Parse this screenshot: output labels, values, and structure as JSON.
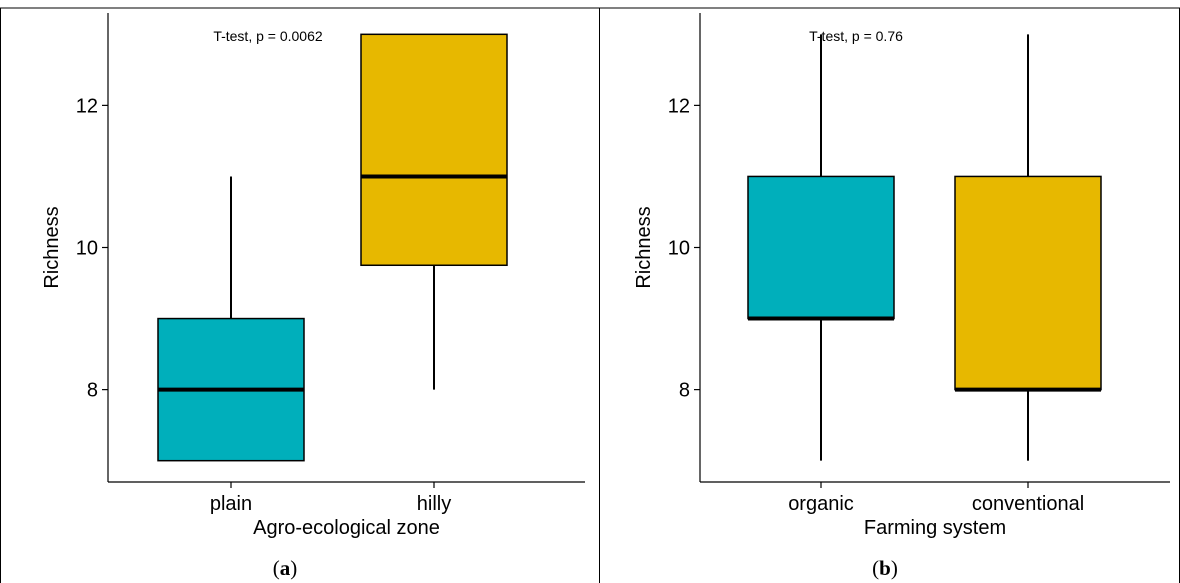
{
  "figure": {
    "panel_labels": [
      {
        "open": "(",
        "letter": "a",
        "close": ")"
      },
      {
        "open": "(",
        "letter": "b",
        "close": ")"
      }
    ]
  },
  "colors": {
    "box_first": "#00AFBB",
    "box_second": "#E7B800",
    "outline": "#000000"
  },
  "chart_data": [
    {
      "type": "box",
      "title": "",
      "annotation": "T-test, p = 0.0062",
      "xlabel": "Agro-ecological zone",
      "ylabel": "Richness",
      "ylim": [
        6.7,
        13.3
      ],
      "yticks": [
        8,
        10,
        12
      ],
      "categories": [
        "plain",
        "hilly"
      ],
      "boxes": [
        {
          "category": "plain",
          "min": 7,
          "q1": 7,
          "median": 8,
          "q3": 9,
          "max": 11,
          "color": "#00AFBB"
        },
        {
          "category": "hilly",
          "min": 8,
          "q1": 9.75,
          "median": 11,
          "q3": 13,
          "max": 13,
          "color": "#E7B800"
        }
      ],
      "grid": false
    },
    {
      "type": "box",
      "title": "",
      "annotation": "T-test, p = 0.76",
      "xlabel": "Farming system",
      "ylabel": "Richness",
      "ylim": [
        6.7,
        13.3
      ],
      "yticks": [
        8,
        10,
        12
      ],
      "categories": [
        "organic",
        "conventional"
      ],
      "boxes": [
        {
          "category": "organic",
          "min": 7,
          "q1": 9,
          "median": 9,
          "q3": 11,
          "max": 13,
          "color": "#00AFBB"
        },
        {
          "category": "conventional",
          "min": 7,
          "q1": 8,
          "median": 8,
          "q3": 11,
          "max": 13,
          "color": "#E7B800"
        }
      ],
      "grid": false
    }
  ]
}
